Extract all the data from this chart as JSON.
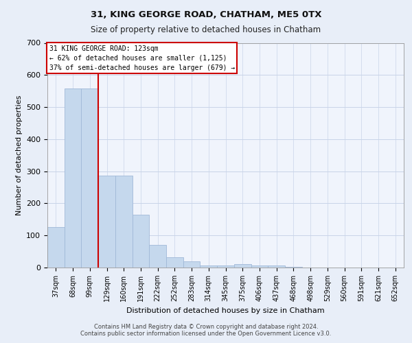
{
  "title1": "31, KING GEORGE ROAD, CHATHAM, ME5 0TX",
  "title2": "Size of property relative to detached houses in Chatham",
  "xlabel": "Distribution of detached houses by size in Chatham",
  "ylabel": "Number of detached properties",
  "categories": [
    "37sqm",
    "68sqm",
    "99sqm",
    "129sqm",
    "160sqm",
    "191sqm",
    "222sqm",
    "252sqm",
    "283sqm",
    "314sqm",
    "345sqm",
    "375sqm",
    "406sqm",
    "437sqm",
    "468sqm",
    "498sqm",
    "529sqm",
    "560sqm",
    "591sqm",
    "621sqm",
    "652sqm"
  ],
  "values": [
    127,
    557,
    557,
    287,
    287,
    165,
    70,
    33,
    20,
    7,
    7,
    10,
    7,
    7,
    3,
    0,
    0,
    0,
    0,
    0,
    0
  ],
  "bar_color": "#c5d8ed",
  "bar_edge_color": "#a0b8d8",
  "annotation_line1": "31 KING GEORGE ROAD: 123sqm",
  "annotation_line2": "← 62% of detached houses are smaller (1,125)",
  "annotation_line3": "37% of semi-detached houses are larger (679) →",
  "annotation_box_color": "#ffffff",
  "annotation_box_edge": "#cc0000",
  "vline_color": "#cc0000",
  "vline_x": 2.5,
  "ylim": [
    0,
    700
  ],
  "yticks": [
    0,
    100,
    200,
    300,
    400,
    500,
    600,
    700
  ],
  "footer1": "Contains HM Land Registry data © Crown copyright and database right 2024.",
  "footer2": "Contains public sector information licensed under the Open Government Licence v3.0.",
  "bg_color": "#e8eef8",
  "plot_bg_color": "#f0f4fc",
  "grid_color": "#c8d4e8"
}
